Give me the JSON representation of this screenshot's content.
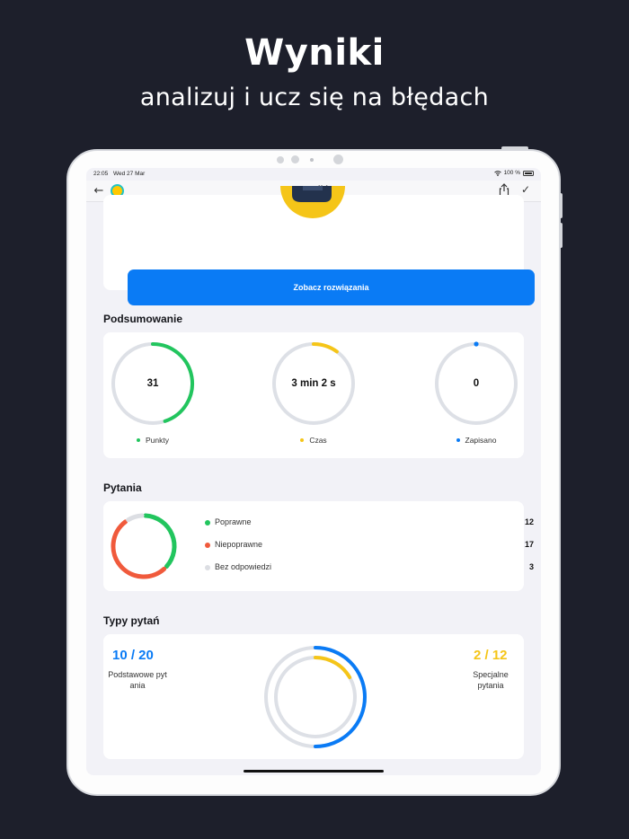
{
  "hero": {
    "title": "Wyniki",
    "subtitle": "analizuj i ucz się na błędach"
  },
  "status_bar": {
    "time": "22:05",
    "date": "Wed 27 Mar",
    "battery": "100 %"
  },
  "nav": {
    "title": "Wyniki",
    "back_icon": "arrow-left-icon",
    "app_icon": "app-badge-icon",
    "share_icon": "share-icon",
    "check_icon": "checkmark-icon"
  },
  "solutions_button": "Zobacz rozwiązania",
  "summary": {
    "title": "Podsumowanie",
    "items": [
      {
        "value": "31",
        "label": "Punkty",
        "color": "#22c55e",
        "fraction": 0.45
      },
      {
        "value": "3 min 2 s",
        "label": "Czas",
        "color": "#f5c518",
        "fraction": 0.1
      },
      {
        "value": "0",
        "label": "Zapisano",
        "color": "#0a7bf5",
        "fraction": 0.0
      }
    ]
  },
  "questions": {
    "title": "Pytania",
    "items": [
      {
        "label": "Poprawne",
        "count": "12",
        "color": "#22c55e"
      },
      {
        "label": "Niepoprawne",
        "count": "17",
        "color": "#f05a3c"
      },
      {
        "label": "Bez odpowiedzi",
        "count": "3",
        "color": "#dcdee3"
      }
    ]
  },
  "question_types": {
    "title": "Typy pytań",
    "basic": {
      "score": "10 / 20",
      "label": "Podstawowe pytania",
      "color": "#0a7bf5",
      "fraction": 0.5
    },
    "special": {
      "score": "2 / 12",
      "label": "Specjalne pytania",
      "color": "#f5c518",
      "fraction": 0.1667
    }
  },
  "colors": {
    "accent": "#0a7bf5",
    "track": "#dde0e6",
    "background": "#1d1f2b"
  }
}
